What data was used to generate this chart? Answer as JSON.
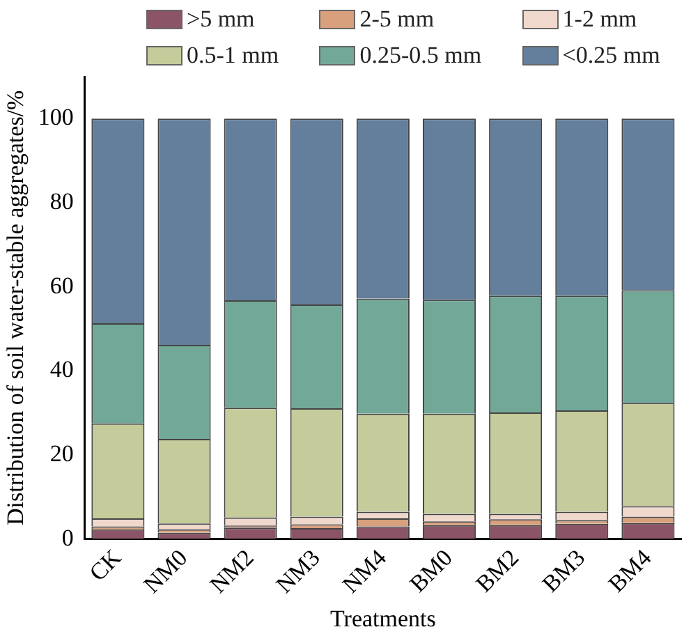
{
  "chart_data": {
    "type": "bar",
    "stacked": true,
    "xlabel": "Treatments",
    "ylabel": "Distribution of soil water-stable aggregates/%",
    "categories": [
      "CK",
      "NM0",
      "NM2",
      "NM3",
      "NM4",
      "BM0",
      "BM2",
      "BM3",
      "BM4"
    ],
    "series": [
      {
        "name": ">5 mm",
        "color": "#8b5467",
        "values": [
          2.3,
          1.5,
          2.7,
          2.6,
          3.0,
          3.3,
          3.3,
          3.6,
          3.8
        ]
      },
      {
        "name": "2-5 mm",
        "color": "#d9a07e",
        "values": [
          0.7,
          0.8,
          0.5,
          0.9,
          1.9,
          0.9,
          1.4,
          0.9,
          1.5
        ]
      },
      {
        "name": "1-2 mm",
        "color": "#f0d8cc",
        "values": [
          1.9,
          1.4,
          1.9,
          1.8,
          1.6,
          1.8,
          1.3,
          2.0,
          2.5
        ]
      },
      {
        "name": "0.5-1 mm",
        "color": "#c5cb9a",
        "values": [
          22.6,
          20.1,
          26.1,
          25.8,
          23.3,
          23.8,
          24.1,
          24.1,
          24.6
        ]
      },
      {
        "name": "0.25-0.5 mm",
        "color": "#72a898",
        "values": [
          23.8,
          22.4,
          25.6,
          24.7,
          27.4,
          27.1,
          27.8,
          27.3,
          26.8
        ]
      },
      {
        "name": "<0.25 mm",
        "color": "#647f9b",
        "values": [
          48.7,
          53.8,
          43.2,
          44.2,
          42.8,
          43.1,
          42.1,
          42.1,
          40.8
        ]
      }
    ],
    "ylim": [
      0,
      110
    ],
    "yticks": [
      0,
      20,
      40,
      60,
      80,
      100
    ],
    "grid": false,
    "legend": "top"
  }
}
